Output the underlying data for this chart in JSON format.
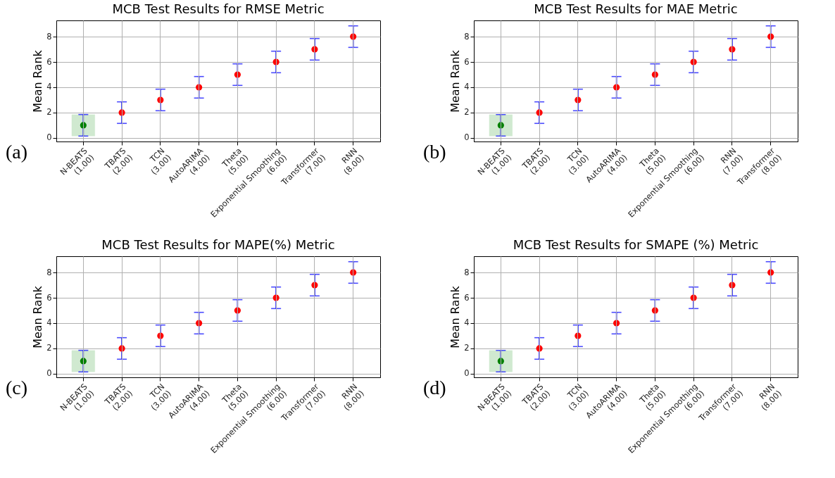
{
  "chart_data": [
    {
      "type": "scatter",
      "title": "MCB Test Results for RMSE Metric",
      "ylabel": "Mean Rank",
      "annotations": [
        "(a)"
      ],
      "categories": [
        "N-BEATS\n(1.00)",
        "TBATS\n(2.00)",
        "TCN\n(3.00)",
        "AutoARIMA\n(4.00)",
        "Theta\n(5.00)",
        "Exponential Smoothing\n(6.00)",
        "Transformer\n(7.00)",
        "RNN\n(8.00)"
      ],
      "values": [
        1,
        2,
        3,
        4,
        5,
        6,
        7,
        8
      ],
      "errors": [
        0.85,
        0.85,
        0.85,
        0.85,
        0.85,
        0.85,
        0.85,
        0.85
      ],
      "colors": [
        "#008000",
        "#ff0000",
        "#ff0000",
        "#ff0000",
        "#ff0000",
        "#ff0000",
        "#ff0000",
        "#ff0000"
      ],
      "bands": [
        {
          "axis": "y",
          "from": 0.15,
          "to": 1.85,
          "color": "#2ca02c"
        }
      ],
      "ylim": [
        -0.28,
        9.28
      ],
      "yticks": [
        0,
        2,
        4,
        6,
        8
      ],
      "grid": true,
      "marker": "circle"
    },
    {
      "type": "scatter",
      "title": "MCB Test Results for MAE Metric",
      "ylabel": "Mean Rank",
      "annotations": [
        "(b)"
      ],
      "categories": [
        "N-BEATS\n(1.00)",
        "TBATS\n(2.00)",
        "TCN\n(3.00)",
        "AutoARIMA\n(4.00)",
        "Theta\n(5.00)",
        "Exponential Smoothing\n(6.00)",
        "RNN\n(7.00)",
        "Transformer\n(8.00)"
      ],
      "values": [
        1,
        2,
        3,
        4,
        5,
        6,
        7,
        8
      ],
      "errors": [
        0.85,
        0.85,
        0.85,
        0.85,
        0.85,
        0.85,
        0.85,
        0.85
      ],
      "colors": [
        "#008000",
        "#ff0000",
        "#ff0000",
        "#ff0000",
        "#ff0000",
        "#ff0000",
        "#ff0000",
        "#ff0000"
      ],
      "bands": [
        {
          "axis": "y",
          "from": 0.15,
          "to": 1.85,
          "color": "#2ca02c"
        }
      ],
      "ylim": [
        -0.28,
        9.28
      ],
      "yticks": [
        0,
        2,
        4,
        6,
        8
      ],
      "grid": true,
      "marker": "circle"
    },
    {
      "type": "scatter",
      "title": "MCB Test Results for MAPE(%) Metric",
      "ylabel": "Mean Rank",
      "annotations": [
        "(c)"
      ],
      "categories": [
        "N-BEATS\n(1.00)",
        "TBATS\n(2.00)",
        "TCN\n(3.00)",
        "AutoARIMA\n(4.00)",
        "Theta\n(5.00)",
        "Exponential Smoothing\n(6.00)",
        "Transformer\n(7.00)",
        "RNN\n(8.00)"
      ],
      "values": [
        1,
        2,
        3,
        4,
        5,
        6,
        7,
        8
      ],
      "errors": [
        0.85,
        0.85,
        0.85,
        0.85,
        0.85,
        0.85,
        0.85,
        0.85
      ],
      "colors": [
        "#008000",
        "#ff0000",
        "#ff0000",
        "#ff0000",
        "#ff0000",
        "#ff0000",
        "#ff0000",
        "#ff0000"
      ],
      "bands": [
        {
          "axis": "y",
          "from": 0.15,
          "to": 1.85,
          "color": "#2ca02c"
        }
      ],
      "ylim": [
        -0.28,
        9.28
      ],
      "yticks": [
        0,
        2,
        4,
        6,
        8
      ],
      "grid": true,
      "marker": "circle"
    },
    {
      "type": "scatter",
      "title": "MCB Test Results for SMAPE (%) Metric",
      "ylabel": "Mean Rank",
      "annotations": [
        "(d)"
      ],
      "categories": [
        "N-BEATS\n(1.00)",
        "TBATS\n(2.00)",
        "TCN\n(3.00)",
        "AutoARIMA\n(4.00)",
        "Theta\n(5.00)",
        "Exponential Smoothing\n(6.00)",
        "Transformer\n(7.00)",
        "RNN\n(8.00)"
      ],
      "values": [
        1,
        2,
        3,
        4,
        5,
        6,
        7,
        8
      ],
      "errors": [
        0.85,
        0.85,
        0.85,
        0.85,
        0.85,
        0.85,
        0.85,
        0.85
      ],
      "colors": [
        "#008000",
        "#ff0000",
        "#ff0000",
        "#ff0000",
        "#ff0000",
        "#ff0000",
        "#ff0000",
        "#ff0000"
      ],
      "bands": [
        {
          "axis": "y",
          "from": 0.15,
          "to": 1.85,
          "color": "#2ca02c"
        }
      ],
      "ylim": [
        -0.28,
        9.28
      ],
      "yticks": [
        0,
        2,
        4,
        6,
        8
      ],
      "grid": true,
      "marker": "circle"
    }
  ]
}
